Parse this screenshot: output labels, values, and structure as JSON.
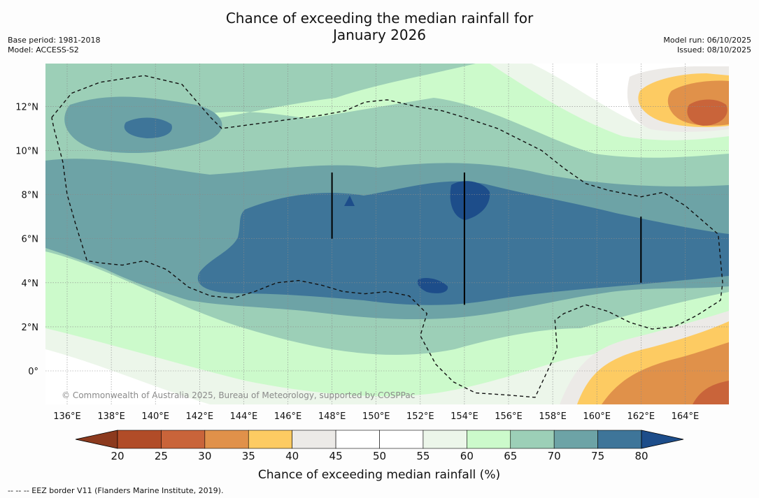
{
  "title": "Chance of exceeding the median rainfall for",
  "subtitle": "January 2026",
  "base_period": "Base period: 1981-2018",
  "model": "Model: ACCESS-S2",
  "model_run": "Model run: 06/10/2025",
  "issued": "Issued: 08/10/2025",
  "copyright": "© Commonwealth of Australia 2025, Bureau of Meteorology, supported by COSPPac",
  "legend_title": "Chance of exceeding median rainfall (%)",
  "footer_note": "--  --  -- EEZ border V11 (Flanders Marine Institute, 2019).",
  "map": {
    "lon_range": [
      135,
      166
    ],
    "lat_range": [
      -1.5,
      14
    ],
    "lon_ticks": [
      136,
      138,
      140,
      142,
      144,
      146,
      148,
      150,
      152,
      154,
      156,
      158,
      160,
      162,
      164
    ],
    "lon_labels": [
      "136°E",
      "138°E",
      "140°E",
      "142°E",
      "144°E",
      "146°E",
      "148°E",
      "150°E",
      "152°E",
      "154°E",
      "156°E",
      "158°E",
      "160°E",
      "162°E",
      "164°E"
    ],
    "lat_ticks": [
      0,
      2,
      4,
      6,
      8,
      10,
      12
    ],
    "lat_labels": [
      "0°",
      "2°N",
      "4°N",
      "6°N",
      "8°N",
      "10°N",
      "12°N"
    ],
    "eez_border": [
      [
        135.3,
        11.5
      ],
      [
        136.2,
        12.6
      ],
      [
        137.5,
        13.1
      ],
      [
        139.5,
        13.4
      ],
      [
        141.2,
        13.0
      ],
      [
        142.5,
        11.5
      ],
      [
        143.0,
        11.0
      ],
      [
        144.5,
        11.2
      ],
      [
        146.0,
        11.4
      ],
      [
        147.5,
        11.6
      ],
      [
        148.6,
        11.8
      ],
      [
        149.5,
        12.2
      ],
      [
        150.5,
        12.3
      ],
      [
        151.8,
        12.0
      ],
      [
        153.0,
        11.8
      ],
      [
        154.0,
        11.5
      ],
      [
        155.5,
        11.0
      ],
      [
        156.5,
        10.5
      ],
      [
        157.5,
        10.0
      ],
      [
        158.5,
        9.2
      ],
      [
        159.5,
        8.5
      ],
      [
        160.5,
        8.2
      ],
      [
        162.0,
        7.9
      ],
      [
        163.0,
        8.1
      ],
      [
        164.0,
        7.5
      ],
      [
        165.5,
        6.2
      ],
      [
        165.7,
        4.0
      ],
      [
        165.6,
        3.2
      ],
      [
        164.5,
        2.5
      ],
      [
        163.5,
        2.0
      ],
      [
        162.5,
        1.9
      ],
      [
        161.5,
        2.2
      ],
      [
        160.5,
        2.7
      ],
      [
        159.5,
        3.0
      ],
      [
        158.5,
        2.6
      ],
      [
        158.1,
        2.3
      ],
      [
        158.2,
        1.0
      ],
      [
        158.0,
        0.5
      ],
      [
        157.2,
        -1.2
      ],
      [
        156.0,
        -1.1
      ],
      [
        154.5,
        -1.0
      ],
      [
        153.5,
        -0.5
      ],
      [
        152.7,
        0.3
      ],
      [
        152.0,
        1.6
      ],
      [
        152.3,
        2.6
      ],
      [
        151.5,
        3.4
      ],
      [
        150.5,
        3.6
      ],
      [
        149.5,
        3.5
      ],
      [
        148.5,
        3.6
      ],
      [
        147.5,
        3.9
      ],
      [
        146.5,
        4.1
      ],
      [
        145.5,
        4.0
      ],
      [
        144.5,
        3.6
      ],
      [
        143.5,
        3.3
      ],
      [
        142.5,
        3.4
      ],
      [
        141.5,
        3.8
      ],
      [
        140.5,
        4.6
      ],
      [
        139.5,
        5.0
      ],
      [
        138.5,
        4.8
      ],
      [
        137.5,
        4.9
      ],
      [
        136.9,
        5.0
      ],
      [
        136.4,
        6.6
      ],
      [
        136.0,
        8.0
      ],
      [
        135.8,
        9.5
      ],
      [
        135.4,
        11.0
      ],
      [
        135.3,
        11.5
      ]
    ],
    "vertical_lines": [
      {
        "lon": 148,
        "lat_from": 6,
        "lat_to": 9
      },
      {
        "lon": 154,
        "lat_from": 3,
        "lat_to": 9
      },
      {
        "lon": 162,
        "lat_from": 4,
        "lat_to": 7
      }
    ]
  },
  "legend": {
    "ticks": [
      "20",
      "25",
      "30",
      "35",
      "40",
      "45",
      "50",
      "55",
      "60",
      "65",
      "70",
      "75",
      "80"
    ],
    "colors": [
      "#8c3a1e",
      "#b14c28",
      "#c9643a",
      "#e0914a",
      "#fdcb62",
      "#eceae7",
      "#ffffff",
      "#ffffff",
      "#ecf6ea",
      "#ccfacb",
      "#9ccfb7",
      "#6da3a6",
      "#3e7599",
      "#1d4d8a"
    ]
  }
}
